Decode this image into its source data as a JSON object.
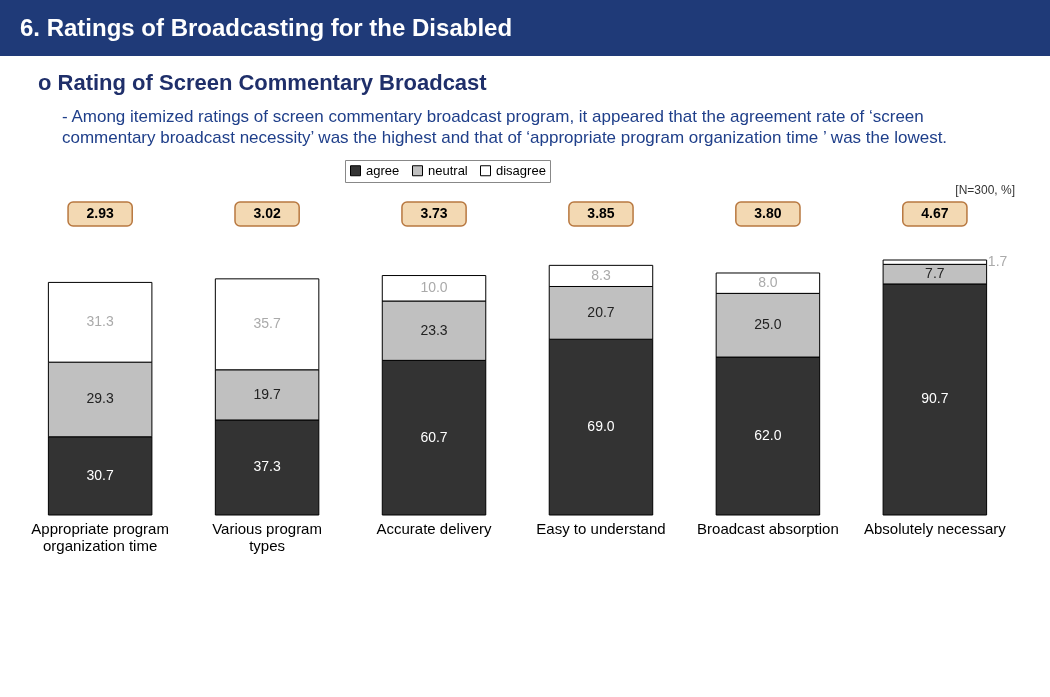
{
  "chart_data": {
    "type": "bar",
    "stacked": true,
    "tick_labels": "x",
    "legend": "top",
    "title": "6. Ratings of Broadcasting for the Disabled",
    "subtitle": "o Rating of Screen Commentary Broadcast",
    "categories": [
      "Appropriate program organization time",
      "Various program types",
      "Accurate delivery",
      "Easy to understand",
      "Broadcast absorption",
      "Absolutely necessary"
    ],
    "series": [
      {
        "name": "agree",
        "color": "#333333",
        "values": [
          30.7,
          37.3,
          60.7,
          69.0,
          62.0,
          90.7
        ],
        "value_labels": [
          "30.7",
          "37.3",
          "60.7",
          "69.0",
          "62.0",
          "90.7"
        ]
      },
      {
        "name": "neutral",
        "color": "#c0c0c0",
        "values": [
          29.3,
          19.7,
          23.3,
          20.7,
          25.0,
          7.7
        ],
        "value_labels": [
          "29.3",
          "19.7",
          "23.3",
          "20.7",
          "25.0",
          "7.7"
        ]
      },
      {
        "name": "disagree",
        "color": "#ffffff",
        "values": [
          31.3,
          35.7,
          10.0,
          8.3,
          8.0,
          1.7
        ],
        "value_labels": [
          "31.3",
          "35.7",
          "10.0",
          "8.3",
          "8.0",
          "1.7"
        ]
      }
    ],
    "annotations": [
      "- Among itemized ratings of screen commentary broadcast program, it appeared that the agreement rate of ‘screen commentary broadcast necessity’ was the highest and that of ‘appropriate program organization time ’ was the lowest.",
      "[N=300, %]",
      "2.93",
      "3.02",
      "3.73",
      "3.85",
      "3.80",
      "4.67"
    ]
  }
}
